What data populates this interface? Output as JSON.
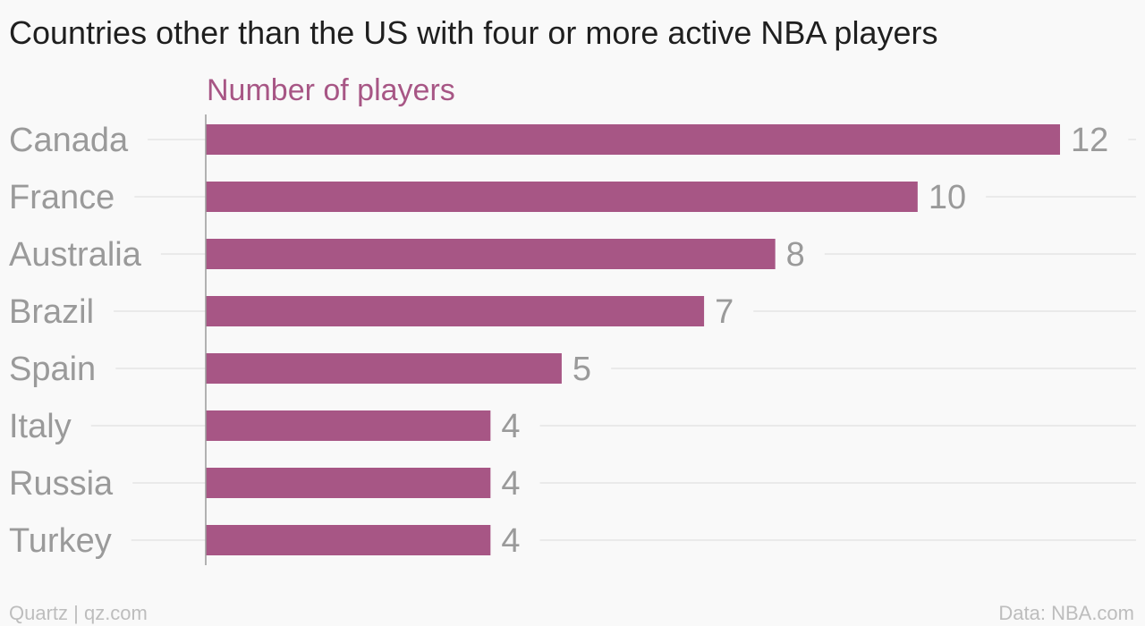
{
  "chart_data": {
    "type": "bar",
    "orientation": "horizontal",
    "title": "Countries other than the US with four or more active NBA players",
    "subtitle": "Number of players",
    "categories": [
      "Canada",
      "France",
      "Australia",
      "Brazil",
      "Spain",
      "Italy",
      "Russia",
      "Turkey"
    ],
    "values": [
      12,
      10,
      8,
      7,
      5,
      4,
      4,
      4
    ],
    "xlim": [
      0,
      12
    ],
    "grid": true,
    "data_labels": true
  },
  "colors": {
    "bar": "#a75685",
    "subtitle": "#a75685",
    "gridline": "#e6e6e6",
    "axis": "#9a9a9a"
  },
  "footer": {
    "source_left": "Quartz | qz.com",
    "source_right": "Data: NBA.com"
  }
}
